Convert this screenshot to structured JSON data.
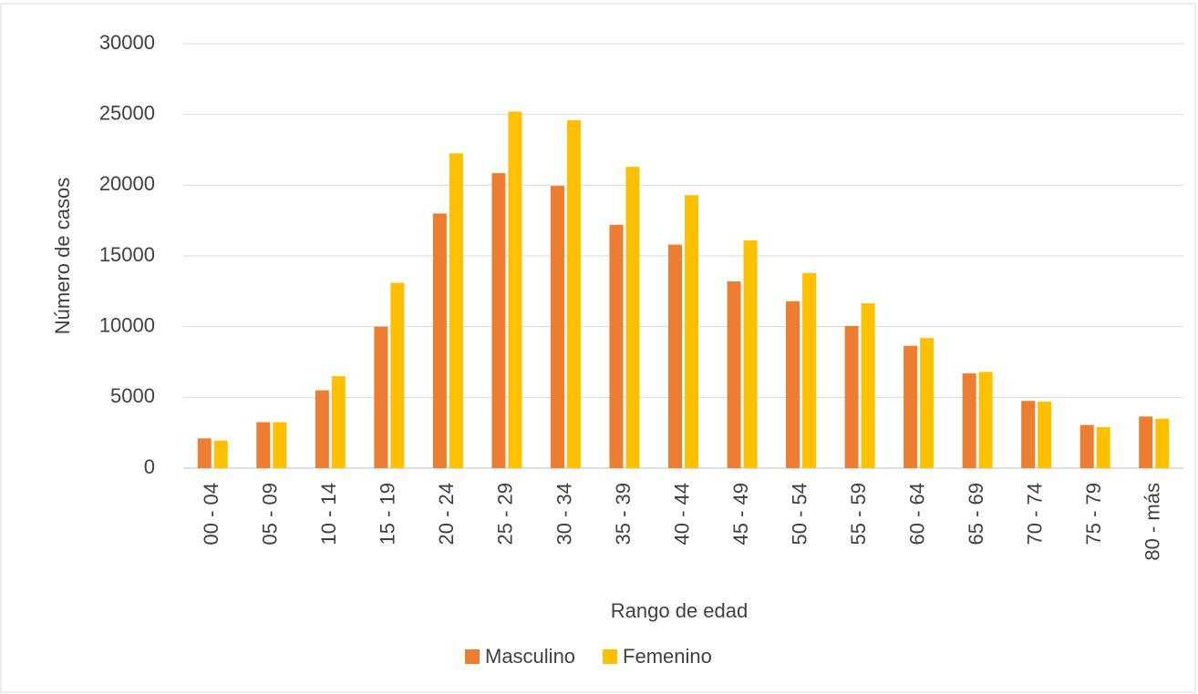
{
  "chart_data": {
    "type": "bar",
    "x_label": "Rango de edad",
    "y_label": "Número de casos",
    "categories": [
      "00 - 04",
      "05 - 09",
      "10 - 14",
      "15 - 19",
      "20 - 24",
      "25 - 29",
      "30 - 34",
      "35 - 39",
      "40 - 44",
      "45 - 49",
      "50 - 54",
      "55 - 59",
      "60 - 64",
      "65 - 69",
      "70 - 74",
      "75 - 79",
      "80 - más"
    ],
    "series": [
      {
        "name": "Masculino",
        "color": "#ed7d31",
        "values": [
          2100,
          3250,
          5500,
          10000,
          18000,
          20850,
          19950,
          17200,
          15800,
          13200,
          11800,
          10050,
          8650,
          6700,
          4750,
          3050,
          3650
        ]
      },
      {
        "name": "Femenino",
        "color": "#ffc000",
        "values": [
          1950,
          3250,
          6500,
          13100,
          22250,
          25200,
          24600,
          21300,
          19300,
          16100,
          13800,
          11650,
          9200,
          6800,
          4700,
          2900,
          3500
        ]
      }
    ],
    "ylim": [
      0,
      30000
    ],
    "yticks": [
      0,
      5000,
      10000,
      15000,
      20000,
      25000,
      30000
    ],
    "grid": true,
    "legend": "bottom"
  }
}
